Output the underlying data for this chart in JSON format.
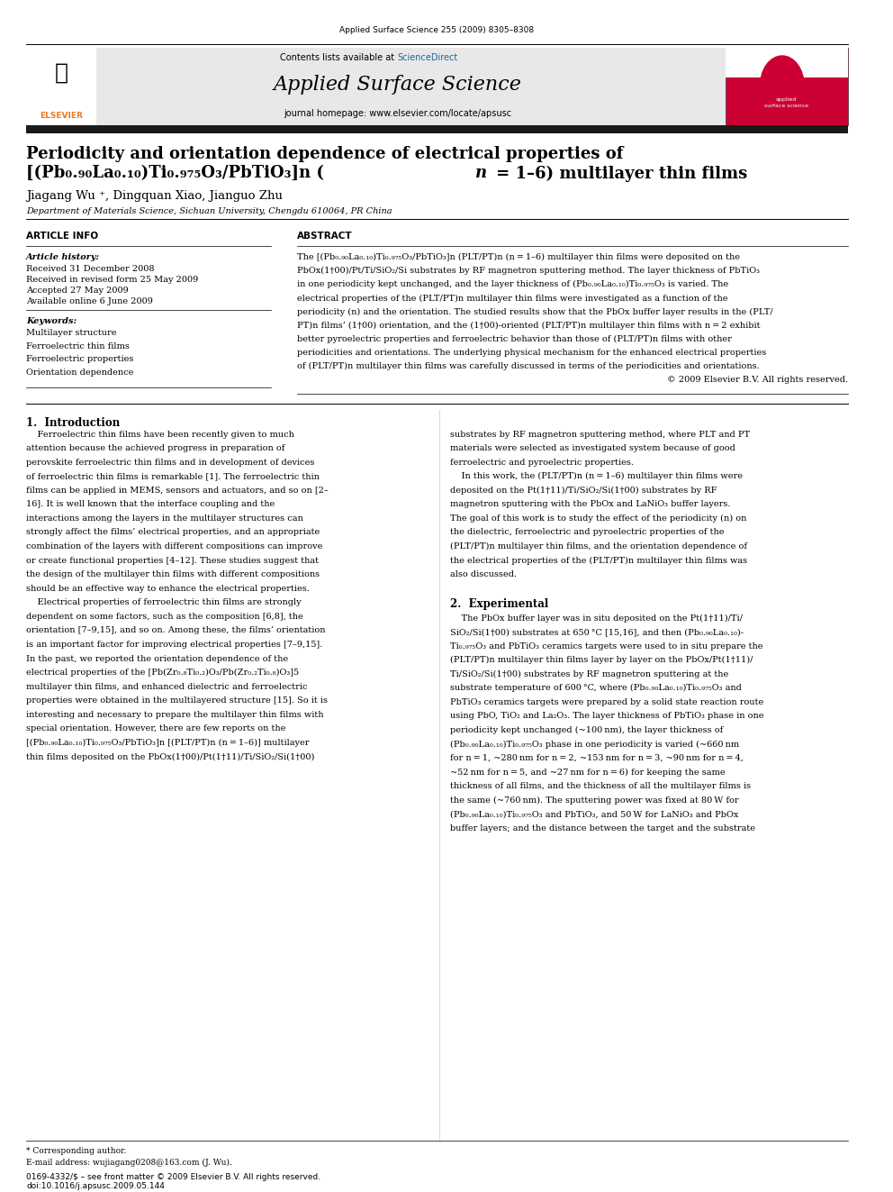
{
  "page_width": 9.92,
  "page_height": 13.23,
  "bg_color": "#ffffff",
  "journal_citation": "Applied Surface Science 255 (2009) 8305–8308",
  "header_bg": "#e8e8e8",
  "header_text1": "Contents lists available at ",
  "header_sciencedirect": "ScienceDirect",
  "header_sciencedirect_color": "#1a6496",
  "journal_name": "Applied Surface Science",
  "journal_url": "journal homepage: www.elsevier.com/locate/apsusc",
  "elsevier_color": "#e87722",
  "title_line1": "Periodicity and orientation dependence of electrical properties of",
  "title_line2": "[(Pb₀.₉₀La₀.₁₀)Ti₀.₉₇₅O₃/PbTiO₃]n (",
  "title_n": "n",
  "title_line2b": " = 1–6) multilayer thin films",
  "authors": "Jiagang Wu æ, Dingquan Xiao, Jianguo Zhu",
  "affiliation": "Department of Materials Science, Sichuan University, Chengdu 610064, PR China",
  "article_info_label": "ARTICLE INFO",
  "abstract_label": "ABSTRACT",
  "article_history_label": "Article history:",
  "received1": "Received 31 December 2008",
  "received2": "Received in revised form 25 May 2009",
  "accepted": "Accepted 27 May 2009",
  "available": "Available online 6 June 2009",
  "keywords_label": "Keywords:",
  "keywords": [
    "Multilayer structure",
    "Ferroelectric thin films",
    "Ferroelectric properties",
    "Orientation dependence"
  ],
  "abstract_text": "The [(Pb₀.₉₀La₀.₁₀)Ti₀.₉₇₅O₃/PbTiO₃]n (PLT/PT)n (n = 1–6) multilayer thin films were deposited on the PbOx(1†00)/Pt/Ti/SiO₂/Si substrates by RF magnetron sputtering method. The layer thickness of PbTiO₃ in one periodicity kept unchanged, and the layer thickness of (Pb₀.₉₀La₀.₁₀)Ti₀.₉₇₅O₃ is varied. The electrical properties of the (PLT/PT)n multilayer thin films were investigated as a function of the periodicity (n) and the orientation. The studied results show that the PbOx buffer layer results in the (PLT/PT)n films’ (1†00) orientation, and the (1†00)-oriented (PLT/PT)n multilayer thin films with n = 2 exhibit better pyroelectric properties and ferroelectric behavior than those of (PLT/PT)n films with other periodicities and orientations. The underlying physical mechanism for the enhanced electrical properties of (PLT/PT)n multilayer thin films was carefully discussed in terms of the periodicities and orientations.\n© 2009 Elsevier B.V. All rights reserved.",
  "intro_heading": "1.  Introduction",
  "intro_col1": "Ferroelectric thin films have been recently given to much attention because the achieved progress in preparation of perovskite ferroelectric thin films and in development of devices of ferroelectric thin films is remarkable [1]. The ferroelectric thin films can be applied in MEMS, sensors and actuators, and so on [2–16]. It is well known that the interface coupling and the interactions among the layers in the multilayer structures can strongly affect the films’ electrical properties, and an appropriate combination of the layers with different compositions can improve or create functional properties [4–12]. These studies suggest that the design of the multilayer thin films with different compositions should be an effective way to enhance the electrical properties.\n    Electrical properties of ferroelectric thin films are strongly dependent on some factors, such as the composition [6,8], the orientation [7–9,15], and so on. Among these, the films’ orientation is an important factor for improving electrical properties [7–9,15]. In the past, we reported the orientation dependence of the electrical properties of the [Pb(Zr₀.₈Ti₀.₂)O₃/Pb(Zr₀.₂Ti₀.₈)O₃]5 multilayer thin films, and enhanced dielectric and ferroelectric properties were obtained in the multilayered structure [15]. So it is interesting and necessary to prepare the multilayer thin films with special orientation. However, there are few reports on the [(Pb₀.₉₀La₀.₁₀)Ti₀.₉₇₅O₃/PbTiO₃]n [(PLT/PT)n (n = 1–6)] multilayer thin films deposited on the PbOx(1†00)/Pt(1†11)/Ti/SiO₂/Si(1†00)",
  "intro_col2": "substrates by RF magnetron sputtering method, where PLT and PT materials were selected as investigated system because of good ferroelectric and pyroelectric properties.\n    In this work, the (PLT/PT)n (n = 1–6) multilayer thin films were deposited on the Pt(1†11)/Ti/SiO₂/Si(1†00) substrates by RF magnetron sputtering with the PbOx and LaNiO₃ buffer layers. The goal of this work is to study the effect of the periodicity (n) on the dielectric, ferroelectric and pyroelectric properties of the (PLT/PT)n multilayer thin films, and the orientation dependence of the electrical properties of the (PLT/PT)n multilayer thin films was also discussed.",
  "exp_heading": "2.  Experimental",
  "exp_col2": "The PbOx buffer layer was in situ deposited on the Pt(1†11)/Ti/SiO₂/Si(1†00) substrates at 650 °C [15,16], and then (Pb₀.₉₀La₀.₁₀)Ti₀.₉₇₅O₃ and PbTiO₃ ceramics targets were used to in situ prepare the (PLT/PT)n multilayer thin films layer by layer on the PbOx/Pt(1†11)/Ti/SiO₂/Si(1†00) substrates by RF magnetron sputtering at the substrate temperature of 600 °C, where (Pb₀.₉₀La₀.₁₀)Ti₀.₉₇₅O₃ and PbTiO₃ ceramics targets were prepared by a solid state reaction route using PbO, TiO₂ and La₂O₃. The layer thickness of PbTiO₃ phase in one periodicity kept unchanged (~100 nm), the layer thickness of (Pb₀.₉₀La₀.₁₀)Ti₀.₉₇₅O₃ phase in one periodicity is varied (~660 nm for n = 1, ~280 nm for n = 2, ~153 nm for n = 3, ~90 nm for n = 4, ~52 nm for n = 5, and ~27 nm for n = 6) for keeping the same thickness of all films, and the thickness of all the multilayer films is the same (~760 nm). The sputtering power was fixed at 80 W for (Pb₀.₉₀La₀.₁₀)Ti₀.₉₇₅O₃ and PbTiO₃, and 50 W for LaNiO₃ and PbOx buffer layers; and the distance between the target and the substrate",
  "footer_left": "0169-4332/$ – see front matter © 2009 Elsevier B.V. All rights reserved.",
  "footer_doi": "doi:10.1016/j.apsusc.2009.05.144",
  "footnote": "* Corresponding author.",
  "footnote_email": "E-mail address: wujiagang0208@163.com (J. Wu)."
}
